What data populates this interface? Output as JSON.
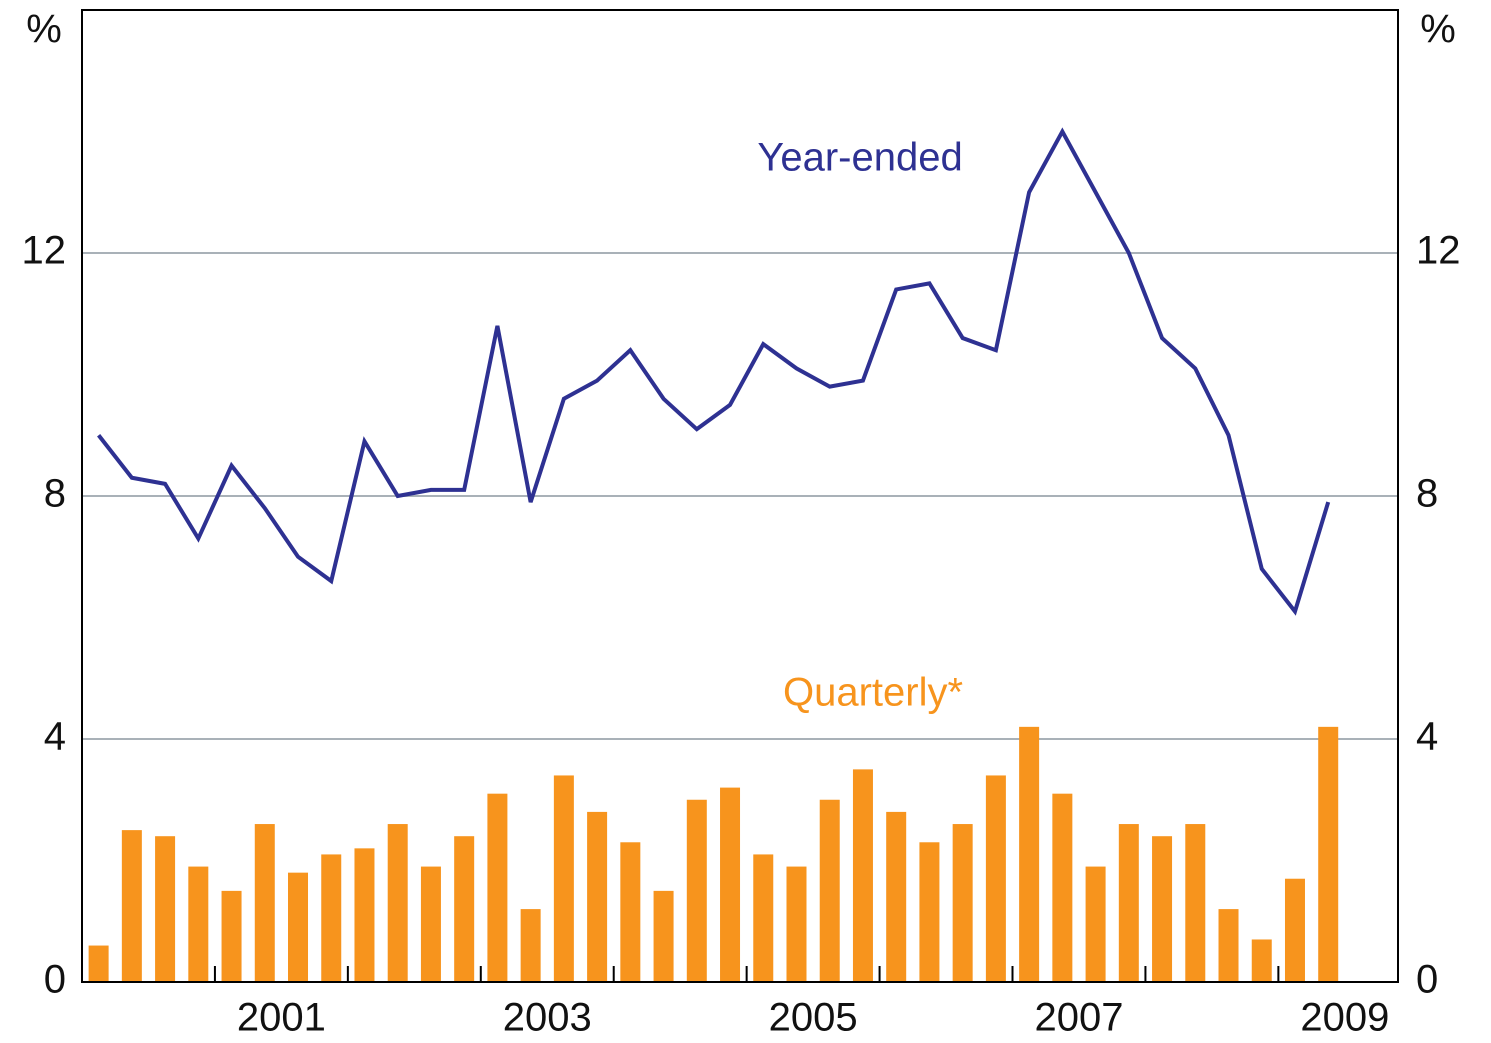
{
  "chart_data": {
    "type": "combo",
    "y_label": "%",
    "y2_label": "%",
    "annotations": [
      "Year-ended",
      "Quarterly*"
    ],
    "x": [
      2000.125,
      2000.375,
      2000.625,
      2000.875,
      2001.125,
      2001.375,
      2001.625,
      2001.875,
      2002.125,
      2002.375,
      2002.625,
      2002.875,
      2003.125,
      2003.375,
      2003.625,
      2003.875,
      2004.125,
      2004.375,
      2004.625,
      2004.875,
      2005.125,
      2005.375,
      2005.625,
      2005.875,
      2006.125,
      2006.375,
      2006.625,
      2006.875,
      2007.125,
      2007.375,
      2007.625,
      2007.875,
      2008.125,
      2008.375,
      2008.625,
      2008.875,
      2009.125,
      2009.375
    ],
    "xlim": [
      2000,
      2009.9
    ],
    "xticks": [
      {
        "value": 2001.5,
        "label": "2001"
      },
      {
        "value": 2003.5,
        "label": "2003"
      },
      {
        "value": 2005.5,
        "label": "2005"
      },
      {
        "value": 2007.5,
        "label": "2007"
      },
      {
        "value": 2009.5,
        "label": "2009"
      }
    ],
    "x_minor_ticks": [
      2001,
      2002,
      2003,
      2004,
      2005,
      2006,
      2007,
      2008,
      2009
    ],
    "ylim": [
      0,
      16
    ],
    "yticks": [
      0,
      4,
      8,
      12
    ],
    "y2lim": [
      0,
      16
    ],
    "y2ticks": [
      0,
      4,
      8,
      12
    ],
    "grid": true,
    "series": [
      {
        "name": "Year-ended",
        "type": "line",
        "color": "#2e3192",
        "values": [
          9.0,
          8.3,
          8.2,
          7.3,
          8.5,
          7.8,
          7.0,
          6.6,
          8.9,
          8.0,
          8.1,
          8.1,
          10.8,
          7.9,
          9.6,
          9.9,
          10.4,
          9.6,
          9.1,
          9.5,
          10.5,
          10.1,
          9.8,
          9.9,
          11.4,
          11.5,
          10.6,
          10.4,
          13.0,
          14.0,
          13.0,
          12.0,
          10.6,
          10.1,
          9.0,
          6.8,
          6.1,
          7.9
        ]
      },
      {
        "name": "Quarterly*",
        "type": "bar",
        "color": "#f7941d",
        "values": [
          0.6,
          2.5,
          2.4,
          1.9,
          1.5,
          2.6,
          1.8,
          2.1,
          2.2,
          2.6,
          1.9,
          2.4,
          3.1,
          1.2,
          3.4,
          2.8,
          2.3,
          1.5,
          3.0,
          3.2,
          2.1,
          1.9,
          3.0,
          3.5,
          2.8,
          2.3,
          2.6,
          3.4,
          4.2,
          3.1,
          1.9,
          2.6,
          2.4,
          2.6,
          1.2,
          0.7,
          1.7,
          4.2
        ]
      }
    ]
  }
}
